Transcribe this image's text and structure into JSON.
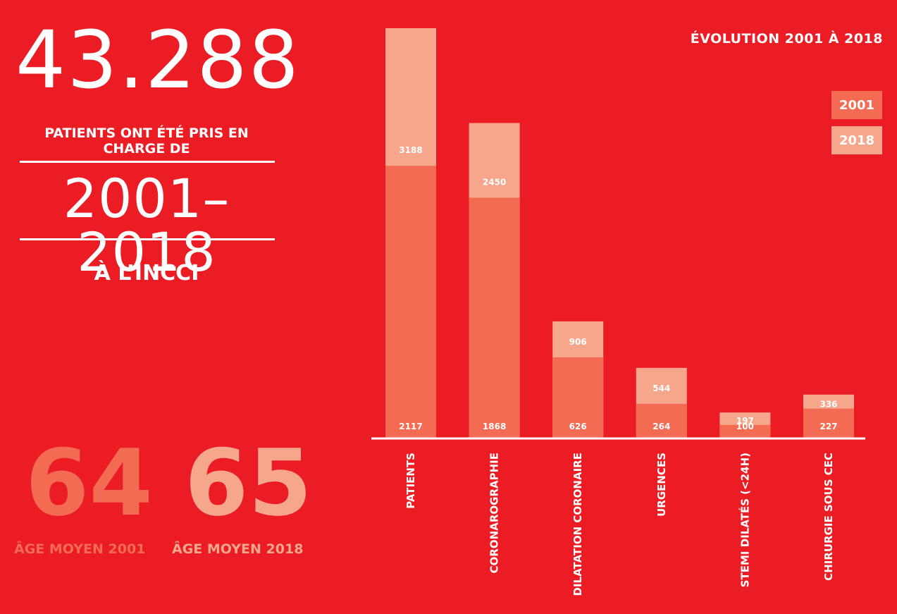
{
  "headline": {
    "big_number": "43.288",
    "subtitle": "PATIENTS ONT ÉTÉ PRIS EN CHARGE DE",
    "years": "2001–2018",
    "place": "À L’INCCI"
  },
  "ages": [
    {
      "value": "64",
      "label": "ÂGE MOYEN 2001",
      "color": "#f26b52"
    },
    {
      "value": "65",
      "label": "ÂGE MOYEN 2018",
      "color": "#f5a68b"
    }
  ],
  "colors": {
    "background": "#ec1c24",
    "series_2001": "#f26b52",
    "series_2018": "#f5a68b",
    "text": "#ffffff"
  },
  "chart_data": {
    "type": "bar",
    "title": "ÉVOLUTION 2001 À 2018",
    "categories": [
      "PATIENTS",
      "CORONAROGRAPHIE",
      "DILATATION CORONAIRE",
      "URGENCES",
      "STEMI DILATÉS (<24H)",
      "CHIRURGIE SOUS CEC"
    ],
    "series": [
      {
        "name": "2001",
        "values": [
          2117,
          1868,
          626,
          264,
          100,
          227
        ]
      },
      {
        "name": "2018",
        "values": [
          3188,
          2450,
          906,
          544,
          197,
          336
        ]
      }
    ],
    "legend_position": "top-right",
    "grid": false
  }
}
